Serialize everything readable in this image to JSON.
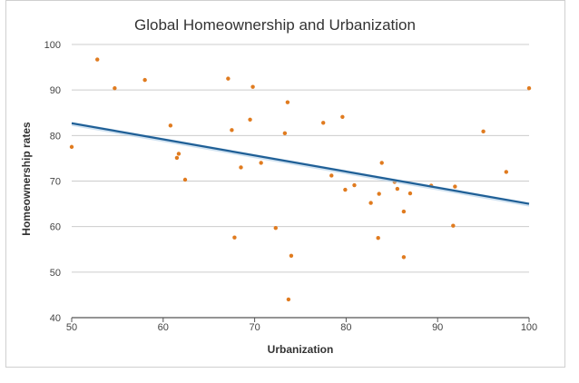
{
  "chart_data": {
    "type": "scatter",
    "title": "Global Homeownership and Urbanization",
    "xlabel": "Urbanization",
    "ylabel": "Homeownership rates",
    "xlim": [
      50,
      100
    ],
    "ylim": [
      40,
      100
    ],
    "xticks": [
      "50",
      "60",
      "70",
      "80",
      "90",
      "100"
    ],
    "yticks": [
      "40",
      "50",
      "60",
      "70",
      "80",
      "90",
      "100"
    ],
    "grid": "horizontal",
    "points": [
      {
        "x": 50.0,
        "y": 77.5
      },
      {
        "x": 52.8,
        "y": 96.7
      },
      {
        "x": 54.7,
        "y": 90.4
      },
      {
        "x": 58.0,
        "y": 92.2
      },
      {
        "x": 60.8,
        "y": 82.2
      },
      {
        "x": 61.5,
        "y": 75.1
      },
      {
        "x": 61.7,
        "y": 76.0
      },
      {
        "x": 62.4,
        "y": 70.3
      },
      {
        "x": 67.1,
        "y": 92.5
      },
      {
        "x": 67.5,
        "y": 81.2
      },
      {
        "x": 67.8,
        "y": 57.6
      },
      {
        "x": 68.5,
        "y": 73.0
      },
      {
        "x": 69.5,
        "y": 83.5
      },
      {
        "x": 69.8,
        "y": 90.7
      },
      {
        "x": 70.7,
        "y": 74.0
      },
      {
        "x": 72.3,
        "y": 59.7
      },
      {
        "x": 73.3,
        "y": 80.5
      },
      {
        "x": 73.6,
        "y": 87.3
      },
      {
        "x": 73.7,
        "y": 44.0
      },
      {
        "x": 74.0,
        "y": 53.6
      },
      {
        "x": 77.5,
        "y": 82.8
      },
      {
        "x": 78.4,
        "y": 71.2
      },
      {
        "x": 79.6,
        "y": 84.1
      },
      {
        "x": 79.9,
        "y": 68.1
      },
      {
        "x": 80.9,
        "y": 69.1
      },
      {
        "x": 82.7,
        "y": 65.2
      },
      {
        "x": 83.5,
        "y": 57.5
      },
      {
        "x": 83.6,
        "y": 67.2
      },
      {
        "x": 83.9,
        "y": 74.0
      },
      {
        "x": 85.3,
        "y": 69.8
      },
      {
        "x": 85.6,
        "y": 68.3
      },
      {
        "x": 86.3,
        "y": 63.3
      },
      {
        "x": 86.3,
        "y": 53.3
      },
      {
        "x": 87.0,
        "y": 67.3
      },
      {
        "x": 89.3,
        "y": 69.0
      },
      {
        "x": 91.7,
        "y": 60.2
      },
      {
        "x": 91.9,
        "y": 68.8
      },
      {
        "x": 95.0,
        "y": 80.9
      },
      {
        "x": 97.5,
        "y": 72.0
      },
      {
        "x": 100.0,
        "y": 90.4
      }
    ],
    "trendline": {
      "x": [
        50,
        100
      ],
      "y": [
        82.7,
        65.0
      ]
    },
    "colors": {
      "points": "#e07b1f",
      "trendline": "#1f5f96",
      "trendline_band": "#a9cbe6",
      "grid": "#cccccc",
      "axis": "#555555"
    }
  }
}
